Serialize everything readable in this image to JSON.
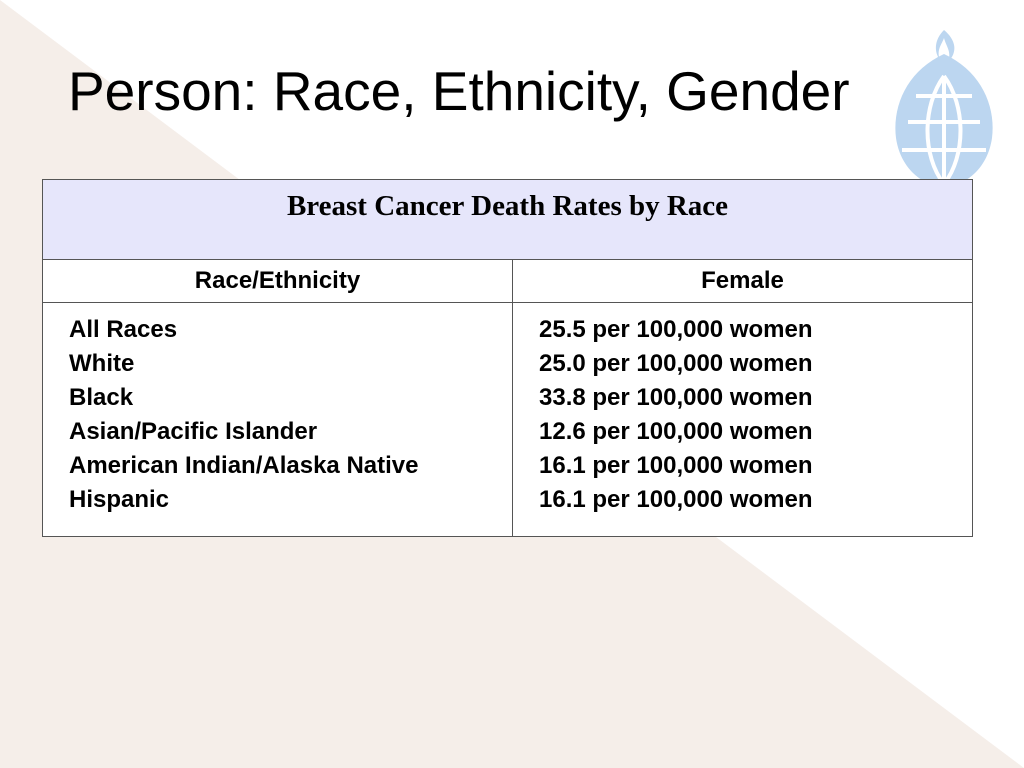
{
  "slide": {
    "title": "Person: Race, Ethnicity, Gender"
  },
  "logo": {
    "icon": "globe-torch-icon",
    "color": "#bcd6f0"
  },
  "background": {
    "accent_color": "#f5eee9"
  },
  "table": {
    "caption": "Breast Cancer Death Rates by Race",
    "headers": [
      "Race/Ethnicity",
      "Female"
    ],
    "races": [
      "All Races",
      "White",
      "Black",
      "Asian/Pacific Islander",
      "American Indian/Alaska Native",
      "Hispanic"
    ],
    "rates": [
      "25.5 per 100,000 women",
      "25.0 per 100,000 women",
      "33.8 per 100,000 women",
      "12.6 per 100,000 women",
      "16.1 per 100,000 women",
      "16.1 per 100,000 women"
    ]
  }
}
